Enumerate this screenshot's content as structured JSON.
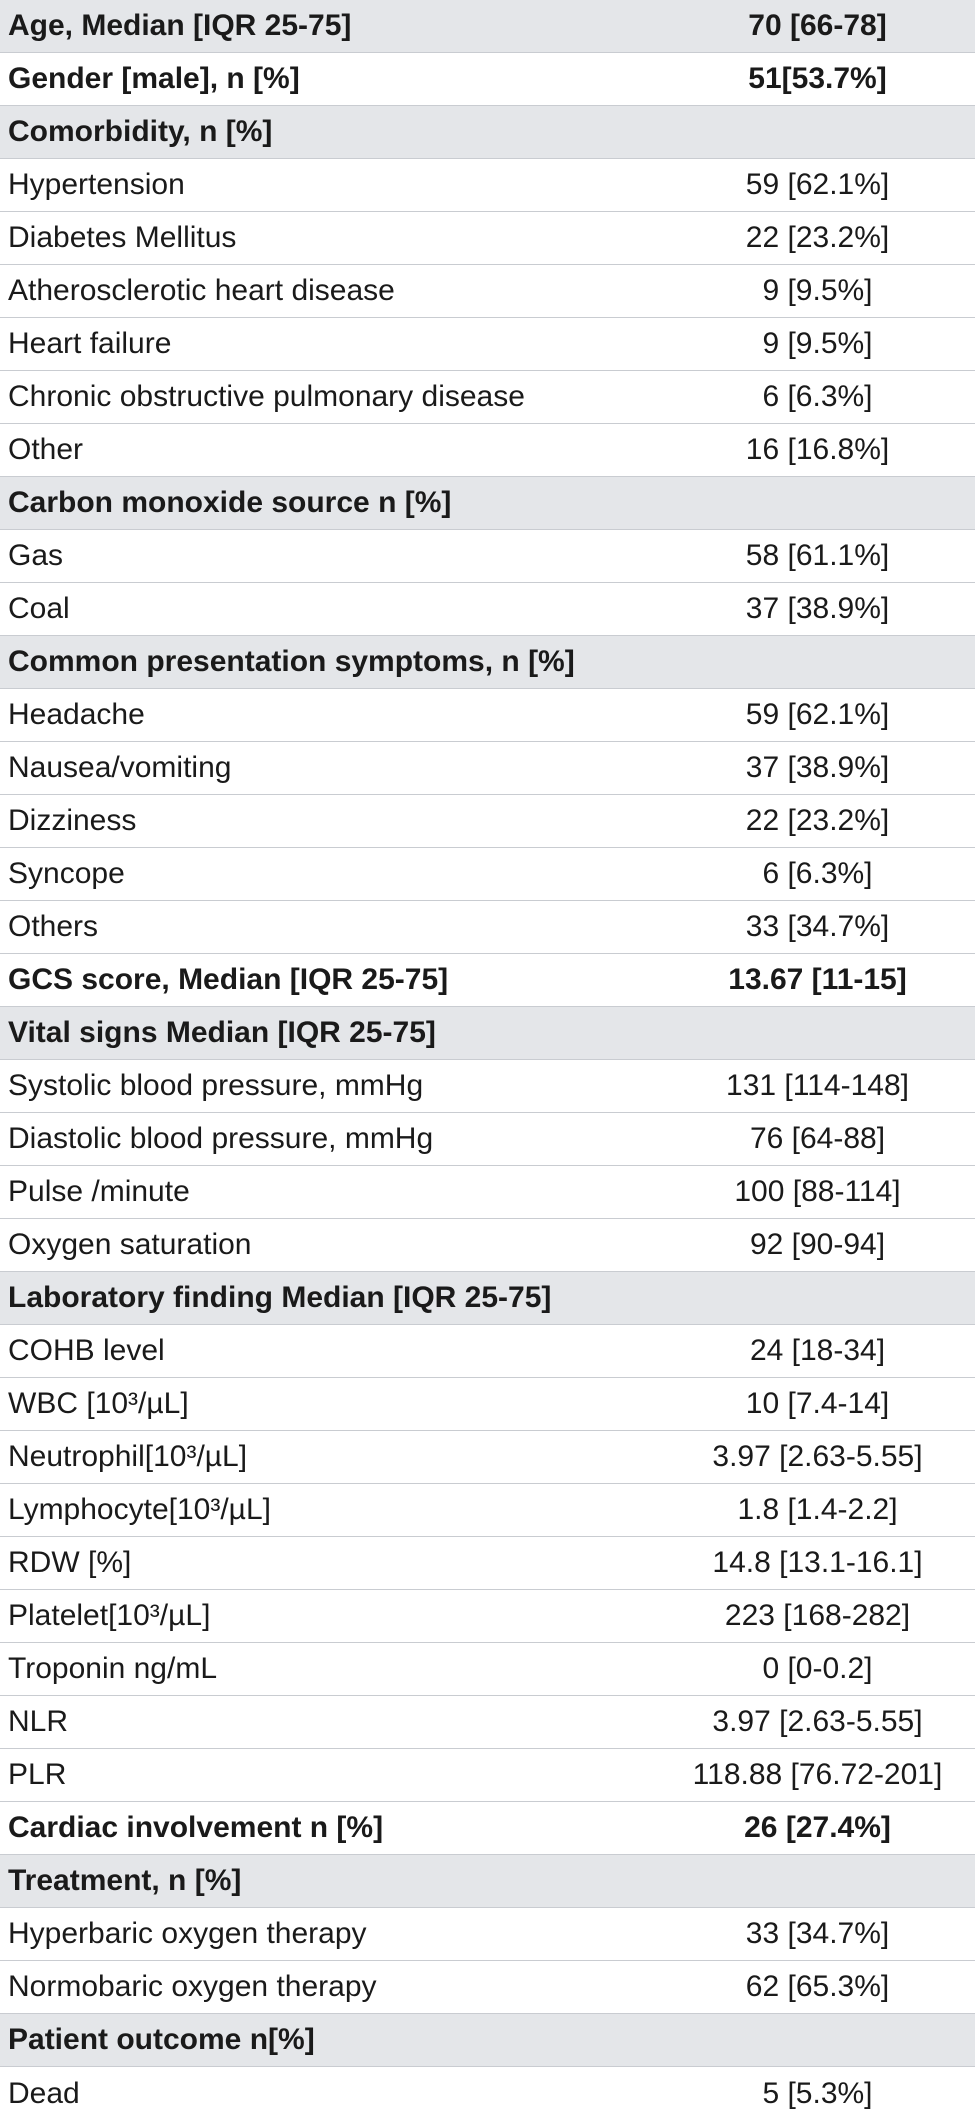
{
  "rows": [
    {
      "label": "Age, Median [IQR 25-75]",
      "value": "70 [66-78]",
      "bold": true,
      "shade": true
    },
    {
      "label": "Gender [male], n [%]",
      "value": "51[53.7%]",
      "bold": true,
      "shade": false
    },
    {
      "label": "Comorbidity, n [%]",
      "value": "",
      "bold": true,
      "shade": true
    },
    {
      "label": "Hypertension",
      "value": "59 [62.1%]",
      "bold": false,
      "shade": false
    },
    {
      "label": "Diabetes Mellitus",
      "value": "22 [23.2%]",
      "bold": false,
      "shade": false
    },
    {
      "label": "Atherosclerotic heart disease",
      "value": "9 [9.5%]",
      "bold": false,
      "shade": false
    },
    {
      "label": "Heart failure",
      "value": "9 [9.5%]",
      "bold": false,
      "shade": false
    },
    {
      "label": "Chronic obstructive pulmonary disease",
      "value": "6 [6.3%]",
      "bold": false,
      "shade": false
    },
    {
      "label": "Other",
      "value": "16 [16.8%]",
      "bold": false,
      "shade": false
    },
    {
      "label": "Carbon monoxide source n [%]",
      "value": "",
      "bold": true,
      "shade": true
    },
    {
      "label": "Gas",
      "value": "58 [61.1%]",
      "bold": false,
      "shade": false
    },
    {
      "label": "Coal",
      "value": "37 [38.9%]",
      "bold": false,
      "shade": false
    },
    {
      "label": "Common presentation symptoms, n [%]",
      "value": "",
      "bold": true,
      "shade": true
    },
    {
      "label": "Headache",
      "value": "59 [62.1%]",
      "bold": false,
      "shade": false
    },
    {
      "label": "Nausea/vomiting",
      "value": "37 [38.9%]",
      "bold": false,
      "shade": false
    },
    {
      "label": "Dizziness",
      "value": "22 [23.2%]",
      "bold": false,
      "shade": false
    },
    {
      "label": "Syncope",
      "value": "6 [6.3%]",
      "bold": false,
      "shade": false
    },
    {
      "label": "Others",
      "value": "33 [34.7%]",
      "bold": false,
      "shade": false
    },
    {
      "label": "GCS score, Median [IQR 25-75]",
      "value": "13.67 [11-15]",
      "bold": true,
      "shade": false
    },
    {
      "label": "Vital signs Median [IQR 25-75]",
      "value": "",
      "bold": true,
      "shade": true
    },
    {
      "label": "Systolic blood pressure, mmHg",
      "value": "131 [114-148]",
      "bold": false,
      "shade": false
    },
    {
      "label": "Diastolic blood pressure, mmHg",
      "value": "76 [64-88]",
      "bold": false,
      "shade": false
    },
    {
      "label": "Pulse /minute",
      "value": "100 [88-114]",
      "bold": false,
      "shade": false
    },
    {
      "label": "Oxygen saturation",
      "value": "92 [90-94]",
      "bold": false,
      "shade": false
    },
    {
      "label": "Laboratory finding Median [IQR 25-75]",
      "value": "",
      "bold": true,
      "shade": true
    },
    {
      "label": "COHB level",
      "value": "24 [18-34]",
      "bold": false,
      "shade": false
    },
    {
      "label": "WBC [10³/µL]",
      "value": "10 [7.4-14]",
      "bold": false,
      "shade": false
    },
    {
      "label": "Neutrophil[10³/µL]",
      "value": "3.97 [2.63-5.55]",
      "bold": false,
      "shade": false
    },
    {
      "label": "Lymphocyte[10³/µL]",
      "value": "1.8 [1.4-2.2]",
      "bold": false,
      "shade": false
    },
    {
      "label": "RDW [%]",
      "value": "14.8 [13.1-16.1]",
      "bold": false,
      "shade": false
    },
    {
      "label": "Platelet[10³/µL]",
      "value": "223 [168-282]",
      "bold": false,
      "shade": false
    },
    {
      "label": "Troponin ng/mL",
      "value": "0 [0-0.2]",
      "bold": false,
      "shade": false
    },
    {
      "label": "NLR",
      "value": "3.97 [2.63-5.55]",
      "bold": false,
      "shade": false
    },
    {
      "label": "PLR",
      "value": "118.88 [76.72-201]",
      "bold": false,
      "shade": false
    },
    {
      "label": "Cardiac involvement n [%]",
      "value": "26 [27.4%]",
      "bold": true,
      "shade": false
    },
    {
      "label": "Treatment, n [%]",
      "value": "",
      "bold": true,
      "shade": true
    },
    {
      "label": "Hyperbaric oxygen therapy",
      "value": "33 [34.7%]",
      "bold": false,
      "shade": false
    },
    {
      "label": "Normobaric oxygen therapy",
      "value": "62 [65.3%]",
      "bold": false,
      "shade": false
    },
    {
      "label": "Patient outcome n[%]",
      "value": "",
      "bold": true,
      "shade": true
    },
    {
      "label": "Dead",
      "value": "5 [5.3%]",
      "bold": false,
      "shade": false
    }
  ]
}
